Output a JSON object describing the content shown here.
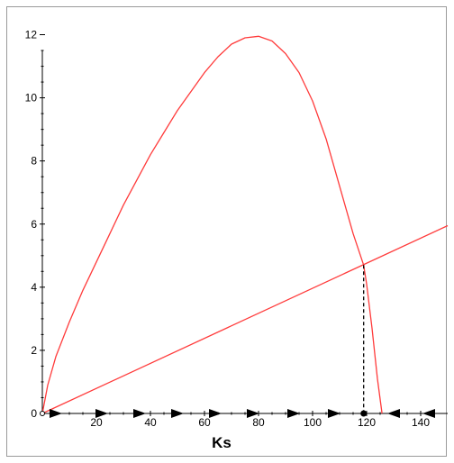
{
  "chart_data": {
    "type": "line",
    "xlabel": "Ks",
    "ylabel": "",
    "xlim": [
      0,
      150
    ],
    "ylim": [
      0,
      12.3
    ],
    "x_ticks": [
      20,
      40,
      60,
      80,
      100,
      120,
      140
    ],
    "y_ticks": [
      0,
      2,
      4,
      6,
      8,
      10,
      12
    ],
    "grid": false,
    "colors": {
      "curve": "#ff3b3b",
      "axis": "#000000"
    },
    "series": [
      {
        "type": "curve",
        "x": [
          0,
          2,
          5,
          10,
          15,
          20,
          25,
          30,
          35,
          40,
          45,
          50,
          55,
          60,
          65,
          70,
          75,
          80,
          85,
          90,
          95,
          100,
          105,
          110,
          115,
          118.9,
          120,
          122,
          124,
          125.7
        ],
        "y": [
          0,
          0.9,
          1.8,
          2.9,
          3.9,
          4.8,
          5.7,
          6.6,
          7.4,
          8.2,
          8.9,
          9.6,
          10.2,
          10.8,
          11.3,
          11.7,
          11.9,
          11.95,
          11.8,
          11.4,
          10.8,
          9.9,
          8.7,
          7.2,
          5.7,
          4.7,
          4.1,
          2.7,
          1.1,
          0
        ]
      },
      {
        "type": "line",
        "x": [
          0,
          150
        ],
        "y": [
          0,
          5.95
        ]
      }
    ],
    "intersection": {
      "x": 118.9,
      "y": 4.7
    },
    "flow_arrows": {
      "right": [
        5,
        22,
        36,
        50,
        64,
        78,
        93,
        108
      ],
      "left": [
        130,
        143
      ]
    }
  }
}
